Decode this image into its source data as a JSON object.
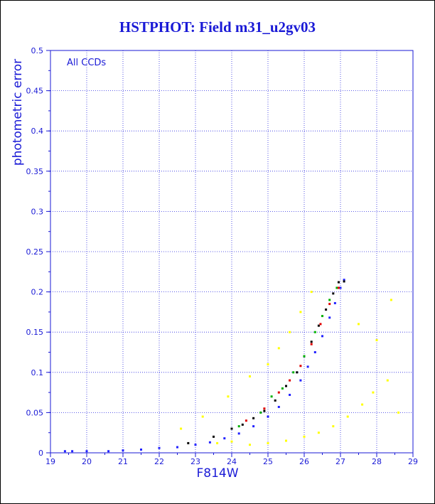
{
  "chart_data": {
    "type": "scatter",
    "title": "HSTPHOT: Field m31_u2gv03",
    "xlabel": "F814W",
    "ylabel": "photometric error",
    "annotation": "All CCDs",
    "xlim": [
      19,
      29
    ],
    "ylim": [
      0,
      0.5
    ],
    "x_ticks": [
      "19",
      "20",
      "21",
      "22",
      "23",
      "24",
      "25",
      "26",
      "27",
      "28",
      "29"
    ],
    "y_ticks": [
      "0",
      "0.05",
      "0.1",
      "0.15",
      "0.2",
      "0.25",
      "0.3",
      "0.35",
      "0.4",
      "0.45",
      "0.5"
    ],
    "grid": true,
    "colors": {
      "axis": "#1a1ad6",
      "grid": "#2a2ae0"
    },
    "series": [
      {
        "color": "#2222ff",
        "points": [
          [
            19.4,
            0.002
          ],
          [
            19.6,
            0.002
          ],
          [
            20.0,
            0.002
          ],
          [
            20.6,
            0.002
          ],
          [
            21.0,
            0.003
          ],
          [
            21.5,
            0.004
          ],
          [
            22.0,
            0.006
          ],
          [
            22.5,
            0.007
          ],
          [
            23.0,
            0.01
          ],
          [
            23.4,
            0.013
          ],
          [
            23.8,
            0.018
          ],
          [
            24.2,
            0.024
          ],
          [
            24.6,
            0.033
          ],
          [
            25.0,
            0.045
          ],
          [
            25.3,
            0.057
          ],
          [
            25.6,
            0.072
          ],
          [
            25.9,
            0.09
          ],
          [
            26.1,
            0.107
          ],
          [
            26.3,
            0.125
          ],
          [
            26.5,
            0.145
          ],
          [
            26.7,
            0.168
          ],
          [
            26.85,
            0.186
          ],
          [
            27.0,
            0.205
          ],
          [
            27.1,
            0.215
          ]
        ]
      },
      {
        "color": "#000000",
        "points": [
          [
            22.8,
            0.012
          ],
          [
            23.5,
            0.02
          ],
          [
            24.0,
            0.03
          ],
          [
            24.3,
            0.035
          ],
          [
            24.6,
            0.043
          ],
          [
            24.9,
            0.052
          ],
          [
            25.2,
            0.065
          ],
          [
            25.5,
            0.083
          ],
          [
            25.8,
            0.1
          ],
          [
            26.0,
            0.12
          ],
          [
            26.2,
            0.138
          ],
          [
            26.4,
            0.158
          ],
          [
            26.6,
            0.178
          ],
          [
            26.8,
            0.198
          ],
          [
            26.95,
            0.212
          ],
          [
            27.1,
            0.213
          ]
        ]
      },
      {
        "color": "#00b000",
        "points": [
          [
            24.2,
            0.033
          ],
          [
            24.8,
            0.05
          ],
          [
            25.1,
            0.07
          ],
          [
            25.4,
            0.08
          ],
          [
            25.7,
            0.1
          ],
          [
            26.0,
            0.12
          ],
          [
            26.3,
            0.15
          ],
          [
            26.5,
            0.17
          ],
          [
            26.7,
            0.19
          ],
          [
            26.9,
            0.205
          ]
        ]
      },
      {
        "color": "#e00000",
        "points": [
          [
            24.4,
            0.04
          ],
          [
            24.9,
            0.055
          ],
          [
            25.3,
            0.075
          ],
          [
            25.6,
            0.09
          ],
          [
            25.9,
            0.108
          ],
          [
            26.2,
            0.135
          ],
          [
            26.45,
            0.16
          ],
          [
            26.7,
            0.185
          ],
          [
            26.95,
            0.205
          ]
        ]
      },
      {
        "color": "#ffff00",
        "points": [
          [
            23.6,
            0.012
          ],
          [
            24.0,
            0.014
          ],
          [
            24.5,
            0.01
          ],
          [
            25.0,
            0.012
          ],
          [
            25.5,
            0.015
          ],
          [
            26.0,
            0.02
          ],
          [
            26.4,
            0.025
          ],
          [
            26.8,
            0.033
          ],
          [
            27.2,
            0.045
          ],
          [
            27.6,
            0.06
          ],
          [
            27.9,
            0.075
          ],
          [
            28.3,
            0.09
          ],
          [
            28.6,
            0.05
          ],
          [
            25.0,
            0.11
          ],
          [
            25.3,
            0.13
          ],
          [
            25.6,
            0.15
          ],
          [
            25.9,
            0.175
          ],
          [
            26.2,
            0.2
          ],
          [
            24.5,
            0.095
          ],
          [
            23.9,
            0.07
          ],
          [
            23.2,
            0.045
          ],
          [
            22.6,
            0.03
          ],
          [
            28.0,
            0.14
          ],
          [
            28.4,
            0.19
          ],
          [
            27.5,
            0.16
          ]
        ]
      }
    ]
  }
}
